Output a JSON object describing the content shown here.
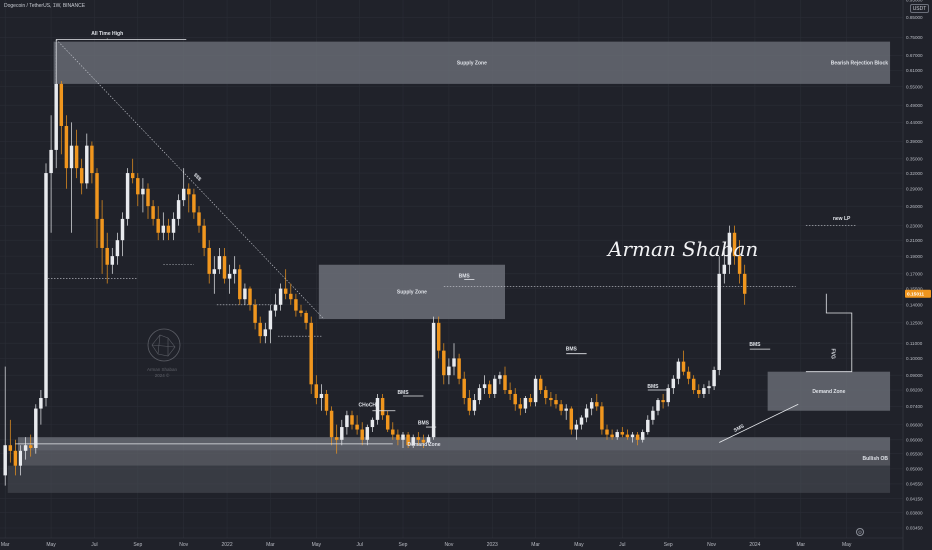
{
  "header": {
    "symbol_title": "Dogecoin / TetherUS, 1W, BINANCE",
    "currency": "USDT"
  },
  "watermark": {
    "signature": "Arman Shaban",
    "logo_name": "Arman Shaban",
    "logo_year": "2024 ©"
  },
  "colors": {
    "background": "#20222a",
    "bull": "#e8eaee",
    "bear": "#f0961e",
    "zone": "#6c6f78",
    "grid": "#2a2d36",
    "price_badge": "#f0961e"
  },
  "chart_data": {
    "type": "candlestick",
    "y_scale": "log",
    "ylim": [
      0.0324,
      0.948
    ],
    "y_ticks": [
      0.95,
      0.85,
      0.75,
      0.67,
      0.61,
      0.55,
      0.49,
      0.44,
      0.39,
      0.35,
      0.32,
      0.29,
      0.26,
      0.23,
      0.21,
      0.19,
      0.17,
      0.155,
      0.14,
      0.125,
      0.11,
      0.1,
      0.09,
      0.082,
      0.074,
      0.066,
      0.06,
      0.055,
      0.05,
      0.0455,
      0.0415,
      0.038,
      0.0345
    ],
    "y_tick_labels": [
      "0.95000",
      "0.85000",
      "0.75000",
      "0.67000",
      "0.61000",
      "0.55000",
      "0.49000",
      "0.44000",
      "0.39000",
      "0.35000",
      "0.32000",
      "0.29000",
      "0.26000",
      "0.23000",
      "0.21000",
      "0.19000",
      "0.17000",
      "0.15500",
      "0.14000",
      "0.12500",
      "0.11000",
      "0.10000",
      "0.09000",
      "0.08200",
      "0.07400",
      "0.06600",
      "0.06000",
      "0.05500",
      "0.05000",
      "0.04550",
      "0.04150",
      "0.03800",
      "0.03450"
    ],
    "x_ticks": [
      {
        "label": "Mar",
        "week": 0
      },
      {
        "label": "May",
        "week": 9
      },
      {
        "label": "Jul",
        "week": 17.5
      },
      {
        "label": "Sep",
        "week": 26
      },
      {
        "label": "Nov",
        "week": 35
      },
      {
        "label": "2022",
        "week": 43.5
      },
      {
        "label": "Mar",
        "week": 52
      },
      {
        "label": "May",
        "week": 61
      },
      {
        "label": "Jul",
        "week": 69.5
      },
      {
        "label": "Sep",
        "week": 78
      },
      {
        "label": "Nov",
        "week": 87
      },
      {
        "label": "2023",
        "week": 95.5
      },
      {
        "label": "Mar",
        "week": 104
      },
      {
        "label": "May",
        "week": 112.5
      },
      {
        "label": "Jul",
        "week": 121
      },
      {
        "label": "Sep",
        "week": 130
      },
      {
        "label": "Nov",
        "week": 138.5
      },
      {
        "label": "2024",
        "week": 147
      },
      {
        "label": "Mar",
        "week": 156
      },
      {
        "label": "May",
        "week": 165
      }
    ],
    "last_price": 0.15,
    "last_price_label": "0.15011",
    "candles": [
      [
        0.048,
        0.095,
        0.045,
        0.058
      ],
      [
        0.058,
        0.068,
        0.052,
        0.056
      ],
      [
        0.056,
        0.06,
        0.048,
        0.051
      ],
      [
        0.051,
        0.058,
        0.048,
        0.056
      ],
      [
        0.056,
        0.061,
        0.053,
        0.058
      ],
      [
        0.058,
        0.062,
        0.054,
        0.057
      ],
      [
        0.057,
        0.075,
        0.055,
        0.073
      ],
      [
        0.073,
        0.082,
        0.066,
        0.078
      ],
      [
        0.078,
        0.34,
        0.074,
        0.32
      ],
      [
        0.32,
        0.46,
        0.22,
        0.37
      ],
      [
        0.37,
        0.74,
        0.33,
        0.56
      ],
      [
        0.56,
        0.57,
        0.36,
        0.43
      ],
      [
        0.43,
        0.46,
        0.29,
        0.33
      ],
      [
        0.33,
        0.44,
        0.22,
        0.38
      ],
      [
        0.38,
        0.42,
        0.31,
        0.33
      ],
      [
        0.33,
        0.35,
        0.28,
        0.3
      ],
      [
        0.3,
        0.41,
        0.29,
        0.38
      ],
      [
        0.38,
        0.39,
        0.3,
        0.32
      ],
      [
        0.32,
        0.33,
        0.2,
        0.24
      ],
      [
        0.24,
        0.27,
        0.17,
        0.2
      ],
      [
        0.2,
        0.22,
        0.16,
        0.18
      ],
      [
        0.18,
        0.2,
        0.17,
        0.19
      ],
      [
        0.19,
        0.22,
        0.18,
        0.21
      ],
      [
        0.21,
        0.25,
        0.19,
        0.24
      ],
      [
        0.24,
        0.33,
        0.23,
        0.32
      ],
      [
        0.32,
        0.35,
        0.3,
        0.31
      ],
      [
        0.31,
        0.32,
        0.26,
        0.28
      ],
      [
        0.28,
        0.31,
        0.25,
        0.29
      ],
      [
        0.29,
        0.3,
        0.24,
        0.26
      ],
      [
        0.26,
        0.27,
        0.23,
        0.24
      ],
      [
        0.24,
        0.26,
        0.21,
        0.22
      ],
      [
        0.22,
        0.25,
        0.21,
        0.23
      ],
      [
        0.23,
        0.24,
        0.21,
        0.22
      ],
      [
        0.22,
        0.25,
        0.21,
        0.24
      ],
      [
        0.24,
        0.28,
        0.23,
        0.27
      ],
      [
        0.27,
        0.33,
        0.26,
        0.29
      ],
      [
        0.29,
        0.3,
        0.25,
        0.28
      ],
      [
        0.28,
        0.29,
        0.24,
        0.25
      ],
      [
        0.25,
        0.26,
        0.22,
        0.23
      ],
      [
        0.23,
        0.24,
        0.19,
        0.2
      ],
      [
        0.2,
        0.21,
        0.16,
        0.17
      ],
      [
        0.17,
        0.19,
        0.15,
        0.175
      ],
      [
        0.175,
        0.2,
        0.17,
        0.19
      ],
      [
        0.19,
        0.2,
        0.16,
        0.165
      ],
      [
        0.165,
        0.18,
        0.15,
        0.17
      ],
      [
        0.17,
        0.19,
        0.16,
        0.175
      ],
      [
        0.175,
        0.18,
        0.14,
        0.145
      ],
      [
        0.145,
        0.16,
        0.14,
        0.155
      ],
      [
        0.155,
        0.157,
        0.135,
        0.14
      ],
      [
        0.14,
        0.145,
        0.12,
        0.125
      ],
      [
        0.125,
        0.13,
        0.11,
        0.115
      ],
      [
        0.115,
        0.125,
        0.11,
        0.12
      ],
      [
        0.12,
        0.14,
        0.11,
        0.135
      ],
      [
        0.135,
        0.15,
        0.13,
        0.14
      ],
      [
        0.14,
        0.16,
        0.135,
        0.155
      ],
      [
        0.155,
        0.175,
        0.145,
        0.15
      ],
      [
        0.15,
        0.16,
        0.14,
        0.145
      ],
      [
        0.145,
        0.15,
        0.13,
        0.135
      ],
      [
        0.135,
        0.14,
        0.13,
        0.133
      ],
      [
        0.133,
        0.135,
        0.12,
        0.125
      ],
      [
        0.125,
        0.13,
        0.08,
        0.085
      ],
      [
        0.085,
        0.09,
        0.075,
        0.078
      ],
      [
        0.078,
        0.085,
        0.072,
        0.08
      ],
      [
        0.08,
        0.082,
        0.07,
        0.072
      ],
      [
        0.072,
        0.074,
        0.058,
        0.061
      ],
      [
        0.061,
        0.066,
        0.055,
        0.06
      ],
      [
        0.06,
        0.068,
        0.058,
        0.065
      ],
      [
        0.065,
        0.072,
        0.062,
        0.07
      ],
      [
        0.07,
        0.072,
        0.064,
        0.066
      ],
      [
        0.066,
        0.07,
        0.062,
        0.064
      ],
      [
        0.064,
        0.067,
        0.058,
        0.06
      ],
      [
        0.06,
        0.066,
        0.058,
        0.065
      ],
      [
        0.065,
        0.069,
        0.063,
        0.068
      ],
      [
        0.068,
        0.08,
        0.066,
        0.078
      ],
      [
        0.078,
        0.08,
        0.068,
        0.07
      ],
      [
        0.07,
        0.072,
        0.063,
        0.064
      ],
      [
        0.064,
        0.067,
        0.06,
        0.062
      ],
      [
        0.062,
        0.064,
        0.058,
        0.06
      ],
      [
        0.06,
        0.063,
        0.057,
        0.062
      ],
      [
        0.062,
        0.063,
        0.057,
        0.058
      ],
      [
        0.058,
        0.062,
        0.057,
        0.061
      ],
      [
        0.061,
        0.063,
        0.058,
        0.06
      ],
      [
        0.06,
        0.062,
        0.057,
        0.059
      ],
      [
        0.059,
        0.062,
        0.058,
        0.061
      ],
      [
        0.061,
        0.13,
        0.06,
        0.125
      ],
      [
        0.125,
        0.13,
        0.1,
        0.105
      ],
      [
        0.105,
        0.11,
        0.085,
        0.09
      ],
      [
        0.09,
        0.1,
        0.085,
        0.095
      ],
      [
        0.095,
        0.11,
        0.09,
        0.1
      ],
      [
        0.1,
        0.103,
        0.085,
        0.088
      ],
      [
        0.088,
        0.092,
        0.075,
        0.078
      ],
      [
        0.078,
        0.082,
        0.07,
        0.072
      ],
      [
        0.072,
        0.08,
        0.07,
        0.077
      ],
      [
        0.077,
        0.085,
        0.075,
        0.083
      ],
      [
        0.083,
        0.09,
        0.08,
        0.085
      ],
      [
        0.085,
        0.087,
        0.078,
        0.08
      ],
      [
        0.08,
        0.09,
        0.078,
        0.088
      ],
      [
        0.088,
        0.092,
        0.085,
        0.09
      ],
      [
        0.09,
        0.095,
        0.08,
        0.082
      ],
      [
        0.082,
        0.086,
        0.077,
        0.08
      ],
      [
        0.08,
        0.083,
        0.072,
        0.075
      ],
      [
        0.075,
        0.078,
        0.07,
        0.073
      ],
      [
        0.073,
        0.079,
        0.071,
        0.078
      ],
      [
        0.078,
        0.08,
        0.074,
        0.076
      ],
      [
        0.076,
        0.09,
        0.074,
        0.088
      ],
      [
        0.088,
        0.09,
        0.08,
        0.082
      ],
      [
        0.082,
        0.084,
        0.075,
        0.078
      ],
      [
        0.078,
        0.081,
        0.074,
        0.077
      ],
      [
        0.077,
        0.08,
        0.073,
        0.075
      ],
      [
        0.075,
        0.077,
        0.07,
        0.072
      ],
      [
        0.072,
        0.075,
        0.068,
        0.073
      ],
      [
        0.073,
        0.074,
        0.062,
        0.064
      ],
      [
        0.064,
        0.068,
        0.06,
        0.066
      ],
      [
        0.066,
        0.07,
        0.064,
        0.069
      ],
      [
        0.069,
        0.075,
        0.067,
        0.073
      ],
      [
        0.073,
        0.078,
        0.07,
        0.076
      ],
      [
        0.076,
        0.08,
        0.072,
        0.074
      ],
      [
        0.074,
        0.076,
        0.062,
        0.064
      ],
      [
        0.064,
        0.066,
        0.06,
        0.062
      ],
      [
        0.062,
        0.064,
        0.06,
        0.061
      ],
      [
        0.061,
        0.064,
        0.06,
        0.063
      ],
      [
        0.063,
        0.065,
        0.061,
        0.062
      ],
      [
        0.062,
        0.064,
        0.06,
        0.061
      ],
      [
        0.061,
        0.063,
        0.059,
        0.062
      ],
      [
        0.062,
        0.063,
        0.058,
        0.06
      ],
      [
        0.06,
        0.064,
        0.059,
        0.063
      ],
      [
        0.063,
        0.07,
        0.062,
        0.068
      ],
      [
        0.068,
        0.074,
        0.066,
        0.072
      ],
      [
        0.072,
        0.078,
        0.07,
        0.077
      ],
      [
        0.077,
        0.08,
        0.073,
        0.076
      ],
      [
        0.076,
        0.085,
        0.074,
        0.083
      ],
      [
        0.083,
        0.09,
        0.08,
        0.088
      ],
      [
        0.088,
        0.1,
        0.085,
        0.098
      ],
      [
        0.098,
        0.105,
        0.09,
        0.092
      ],
      [
        0.092,
        0.095,
        0.085,
        0.088
      ],
      [
        0.088,
        0.09,
        0.08,
        0.082
      ],
      [
        0.082,
        0.085,
        0.078,
        0.08
      ],
      [
        0.08,
        0.085,
        0.078,
        0.083
      ],
      [
        0.083,
        0.087,
        0.08,
        0.084
      ],
      [
        0.084,
        0.095,
        0.082,
        0.093
      ],
      [
        0.093,
        0.19,
        0.09,
        0.17
      ],
      [
        0.17,
        0.2,
        0.16,
        0.18
      ],
      [
        0.18,
        0.23,
        0.17,
        0.22
      ],
      [
        0.22,
        0.23,
        0.18,
        0.19
      ],
      [
        0.19,
        0.21,
        0.16,
        0.17
      ],
      [
        0.17,
        0.18,
        0.14,
        0.15
      ]
    ],
    "zones": [
      {
        "label": "Supply Zone",
        "label2": "Bearish Rejection Block",
        "from_week": 9.5,
        "to_week": 173.5,
        "top": 0.73,
        "bottom": 0.56
      },
      {
        "label": "Supply Zone",
        "label2": "",
        "from_week": 61.5,
        "to_week": 98,
        "top": 0.18,
        "bottom": 0.128
      },
      {
        "label": "Demand Zone",
        "label2": "",
        "from_week": 149.5,
        "to_week": 173.5,
        "top": 0.092,
        "bottom": 0.072
      },
      {
        "label": "Demand Zone",
        "label2": "",
        "from_week": 2.5,
        "to_week": 173.5,
        "top": 0.061,
        "bottom": 0.056
      },
      {
        "label": "",
        "label2": "Bullish OB",
        "from_week": 3.5,
        "to_week": 173.5,
        "top": 0.056,
        "bottom": 0.051
      },
      {
        "label": "",
        "label2": "",
        "from_week": 0.5,
        "to_week": 173.5,
        "top": 0.051,
        "bottom": 0.043
      }
    ],
    "annotations": [
      {
        "text": "All Time High",
        "week": 20,
        "price": 0.76
      },
      {
        "text": "$$$",
        "week": 37.5,
        "price": 0.31
      },
      {
        "text": "BMS",
        "week": 90,
        "price": 0.166
      },
      {
        "text": "BMS",
        "week": 78,
        "price": 0.08
      },
      {
        "text": "BMS",
        "week": 82,
        "price": 0.066
      },
      {
        "text": "CHoCH",
        "week": 71,
        "price": 0.074
      },
      {
        "text": "BMS",
        "week": 111,
        "price": 0.105
      },
      {
        "text": "BMS",
        "week": 127,
        "price": 0.083
      },
      {
        "text": "BMS",
        "week": 147,
        "price": 0.108
      },
      {
        "text": "new LP",
        "week": 164,
        "price": 0.238
      },
      {
        "text": "SMS",
        "week": 144,
        "price": 0.064
      },
      {
        "text": "FVG",
        "week": 162,
        "price": 0.103
      }
    ]
  }
}
